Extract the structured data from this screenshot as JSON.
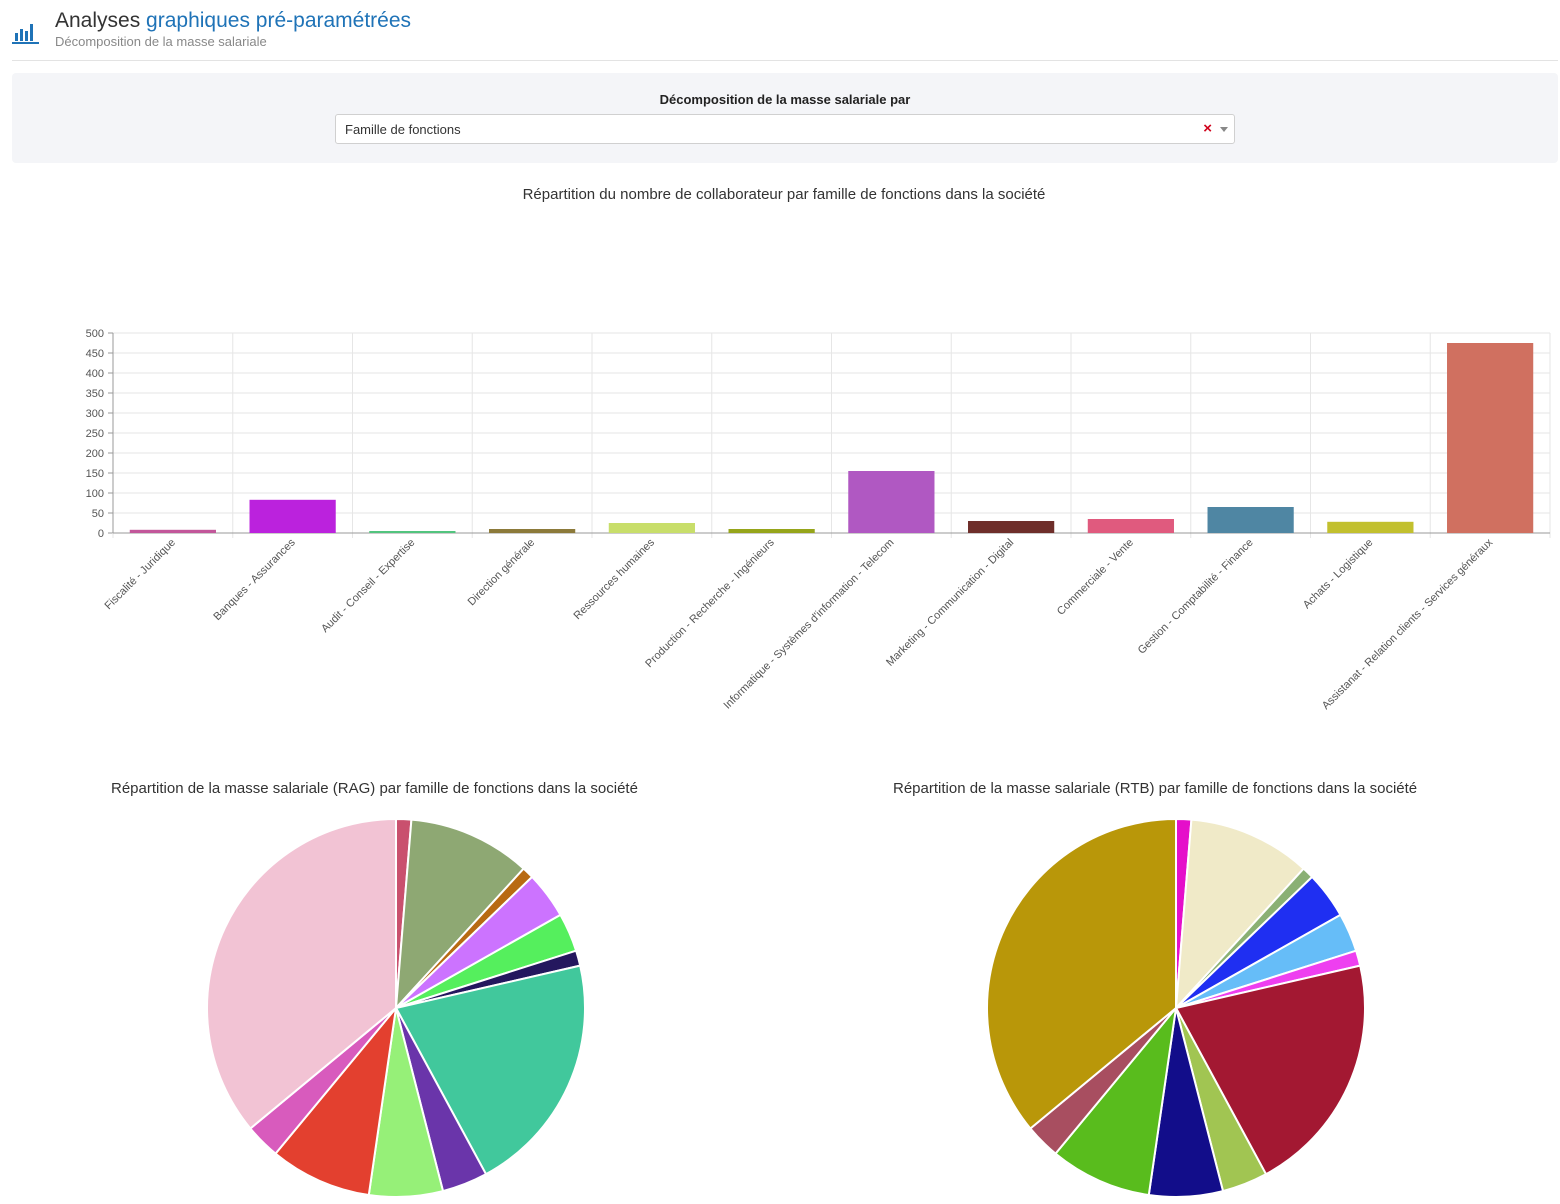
{
  "header": {
    "title_part1": "Analyses ",
    "title_part2": "graphiques pré-paramétrées",
    "subtitle": "Décomposition de la masse salariale",
    "icon": "bar-chart-icon"
  },
  "filter": {
    "label": "Décomposition de la masse salariale par",
    "selected": "Famille de fonctions",
    "clear_symbol": "×"
  },
  "chart_data": [
    {
      "type": "bar",
      "title": "Répartition du nombre de collaborateur par famille de fonctions dans la société",
      "categories": [
        "Fiscalité - Juridique",
        "Banques - Assurances",
        "Audit - Conseil - Expertise",
        "Direction générale",
        "Ressources humaines",
        "Production - Recherche - Ingénieurs",
        "Informatique - Systèmes d'information - Telecom",
        "Marketing - Communication - Digital",
        "Commerciale - Vente",
        "Gestion - Comptabilité - Finance",
        "Achats - Logistique",
        "Assistanat - Relation clients - Services généraux"
      ],
      "values": [
        8,
        83,
        5,
        10,
        25,
        10,
        155,
        30,
        35,
        65,
        28,
        475
      ],
      "colors": [
        "#c2579a",
        "#bb22dd",
        "#52c47e",
        "#8c7a3a",
        "#c8de6a",
        "#96a51a",
        "#b058c2",
        "#6e2e2a",
        "#e05a7e",
        "#4f86a3",
        "#c2c02e",
        "#d07060"
      ],
      "ylim": [
        0,
        500
      ],
      "yticks": [
        0,
        50,
        100,
        150,
        200,
        250,
        300,
        350,
        400,
        450,
        500
      ],
      "grid": true
    },
    {
      "type": "pie",
      "title": "Répartition de la masse salariale (RAG) par famille de fonctions dans la société",
      "values": [
        1.3,
        10.5,
        1.0,
        4.0,
        3.3,
        1.3,
        20.7,
        3.9,
        6.3,
        8.7,
        3.0,
        36.0
      ],
      "colors": [
        "#c9506e",
        "#8ea873",
        "#b86a12",
        "#cc73ff",
        "#55ef5d",
        "#24175e",
        "#41c89c",
        "#6a35aa",
        "#96f078",
        "#e3402f",
        "#d85bbd",
        "#f2c3d4"
      ]
    },
    {
      "type": "pie",
      "title": "Répartition de la masse salariale (RTB) par famille de fonctions dans la société",
      "values": [
        1.3,
        10.5,
        1.0,
        4.0,
        3.3,
        1.3,
        20.7,
        3.9,
        6.3,
        8.7,
        3.0,
        36.0
      ],
      "colors": [
        "#e50fca",
        "#f0eac8",
        "#8ab074",
        "#1f2ff2",
        "#66bdf8",
        "#ee3ff0",
        "#a31832",
        "#a1c552",
        "#120d8a",
        "#59bc1d",
        "#a84e60",
        "#b99709"
      ]
    }
  ]
}
